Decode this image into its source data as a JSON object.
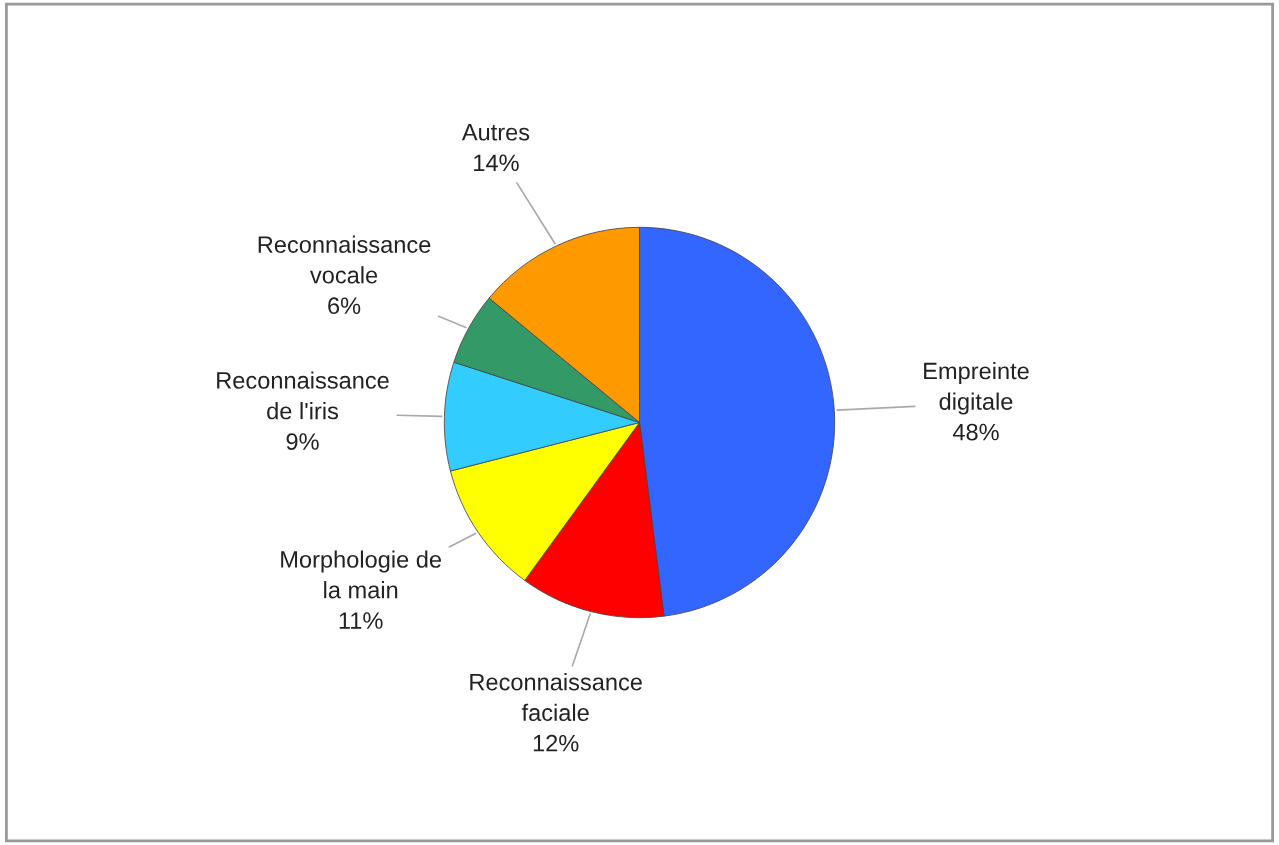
{
  "chart_data": {
    "type": "pie",
    "categories": [
      "Empreinte\ndigitale",
      "Reconnaissance\nfaciale",
      "Morphologie de\nla main",
      "Reconnaissance\nde l'iris",
      "Reconnaissance\nvocale",
      "Autres"
    ],
    "values": [
      48,
      12,
      11,
      9,
      6,
      14
    ],
    "value_labels": [
      "48%",
      "12%",
      "11%",
      "9%",
      "6%",
      "14%"
    ],
    "colors": [
      "#3366ff",
      "#ff0000",
      "#ffff00",
      "#33ccff",
      "#339966",
      "#ff9900"
    ],
    "legend": false
  }
}
